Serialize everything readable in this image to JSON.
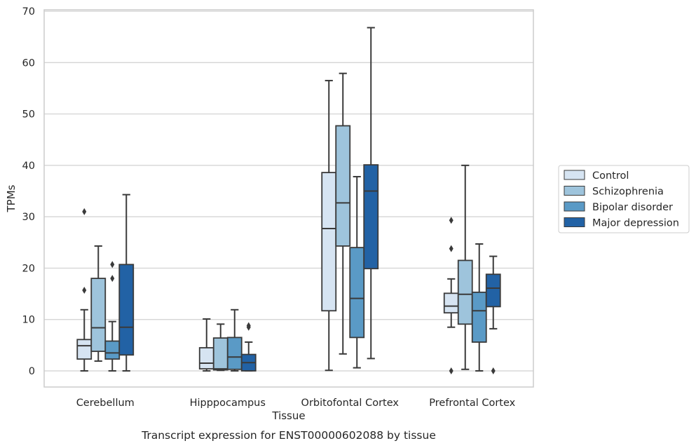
{
  "chart_data": {
    "type": "box",
    "title": "",
    "caption": "Transcript expression for ENST00000602088 by tissue",
    "xlabel": "Tissue",
    "ylabel": "TPMs",
    "ylim": [
      -3.2,
      70.5
    ],
    "yticks": [
      0,
      10,
      20,
      30,
      40,
      50,
      60,
      70
    ],
    "grid": "horizontal",
    "legend_position": "right",
    "categories": [
      "Cerebellum",
      "Hipppocampus",
      "Orbitofontal Cortex",
      "Prefrontal Cortex"
    ],
    "series": [
      {
        "name": "Control",
        "color": "#d6e4f2",
        "boxes": [
          {
            "whisker_low": 0.0,
            "q1": 2.3,
            "median": 4.9,
            "q3": 6.1,
            "whisker_high": 11.9,
            "outliers": [
              15.7,
              31.0
            ]
          },
          {
            "whisker_low": 0.0,
            "q1": 0.4,
            "median": 1.5,
            "q3": 4.5,
            "whisker_high": 10.1,
            "outliers": []
          },
          {
            "whisker_low": 0.1,
            "q1": 11.7,
            "median": 27.7,
            "q3": 38.6,
            "whisker_high": 56.5,
            "outliers": []
          },
          {
            "whisker_low": 8.5,
            "q1": 11.3,
            "median": 12.6,
            "q3": 15.1,
            "whisker_high": 17.9,
            "outliers": [
              0.0,
              23.8,
              29.3
            ]
          }
        ]
      },
      {
        "name": "Schizophrenia",
        "color": "#9ec4dc",
        "boxes": [
          {
            "whisker_low": 1.9,
            "q1": 3.8,
            "median": 8.4,
            "q3": 18.0,
            "whisker_high": 24.3,
            "outliers": []
          },
          {
            "whisker_low": 0.1,
            "q1": 0.2,
            "median": 0.4,
            "q3": 6.4,
            "whisker_high": 9.1,
            "outliers": []
          },
          {
            "whisker_low": 3.3,
            "q1": 24.3,
            "median": 32.7,
            "q3": 47.7,
            "whisker_high": 57.9,
            "outliers": []
          },
          {
            "whisker_low": 0.3,
            "q1": 9.1,
            "median": 14.9,
            "q3": 21.5,
            "whisker_high": 40.0,
            "outliers": []
          }
        ]
      },
      {
        "name": "Bipolar disorder",
        "color": "#5a9ac6",
        "boxes": [
          {
            "whisker_low": 0.0,
            "q1": 2.3,
            "median": 3.5,
            "q3": 5.8,
            "whisker_high": 9.6,
            "outliers": [
              18.0,
              20.7
            ]
          },
          {
            "whisker_low": 0.0,
            "q1": 0.3,
            "median": 2.7,
            "q3": 6.5,
            "whisker_high": 11.9,
            "outliers": []
          },
          {
            "whisker_low": 0.6,
            "q1": 6.5,
            "median": 14.1,
            "q3": 24.0,
            "whisker_high": 37.8,
            "outliers": []
          },
          {
            "whisker_low": 0.0,
            "q1": 5.6,
            "median": 11.7,
            "q3": 15.3,
            "whisker_high": 24.7,
            "outliers": []
          }
        ]
      },
      {
        "name": "Major depression",
        "color": "#2262a5",
        "boxes": [
          {
            "whisker_low": 0.0,
            "q1": 3.1,
            "median": 8.5,
            "q3": 20.7,
            "whisker_high": 34.3,
            "outliers": []
          },
          {
            "whisker_low": 0.0,
            "q1": 0.0,
            "median": 1.6,
            "q3": 3.2,
            "whisker_high": 5.6,
            "outliers": [
              8.5,
              8.8
            ]
          },
          {
            "whisker_low": 2.4,
            "q1": 19.9,
            "median": 35.0,
            "q3": 40.1,
            "whisker_high": 66.8,
            "outliers": []
          },
          {
            "whisker_low": 8.2,
            "q1": 12.5,
            "median": 16.1,
            "q3": 18.8,
            "whisker_high": 22.3,
            "outliers": [
              0.0
            ]
          }
        ]
      }
    ]
  }
}
